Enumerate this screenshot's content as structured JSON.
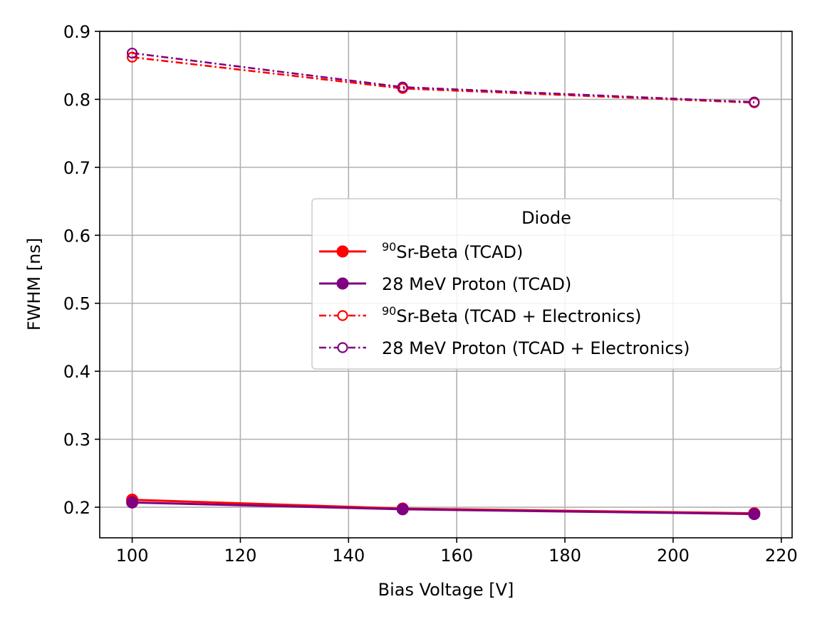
{
  "chart_data": {
    "type": "line",
    "title": "",
    "xlabel": "Bias Voltage [V]",
    "ylabel": "FWHM [ns]",
    "xlim": [
      94,
      222
    ],
    "ylim": [
      0.155,
      0.9
    ],
    "xticks": [
      100,
      120,
      140,
      160,
      180,
      200,
      220
    ],
    "yticks": [
      0.2,
      0.3,
      0.4,
      0.5,
      0.6,
      0.7,
      0.8,
      0.9
    ],
    "xtick_labels": [
      "100",
      "120",
      "140",
      "160",
      "180",
      "200",
      "220"
    ],
    "ytick_labels": [
      "0.2",
      "0.3",
      "0.4",
      "0.5",
      "0.6",
      "0.7",
      "0.8",
      "0.9"
    ],
    "grid": true,
    "legend": {
      "title": "Diode",
      "placement": "center-right"
    },
    "series": [
      {
        "name_sup": "90",
        "name": "Sr-Beta (TCAD)",
        "color": "#ff0000",
        "linestyle": "solid",
        "marker": "filled-circle",
        "x": [
          100,
          150,
          215
        ],
        "y": [
          0.211,
          0.198,
          0.191
        ]
      },
      {
        "name_sup": "",
        "name": "28 MeV Proton (TCAD)",
        "color": "#800080",
        "linestyle": "solid",
        "marker": "filled-circle",
        "x": [
          100,
          150,
          215
        ],
        "y": [
          0.207,
          0.197,
          0.19
        ]
      },
      {
        "name_sup": "90",
        "name": "Sr-Beta (TCAD + Electronics)",
        "color": "#ff0000",
        "linestyle": "dashdot",
        "marker": "open-circle",
        "x": [
          100,
          150,
          215
        ],
        "y": [
          0.862,
          0.816,
          0.795
        ]
      },
      {
        "name_sup": "",
        "name": "28 MeV Proton (TCAD + Electronics)",
        "color": "#800080",
        "linestyle": "dashdot",
        "marker": "open-circle",
        "x": [
          100,
          150,
          215
        ],
        "y": [
          0.868,
          0.818,
          0.796
        ]
      }
    ]
  }
}
